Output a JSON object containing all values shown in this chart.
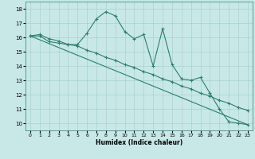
{
  "xlabel": "Humidex (Indice chaleur)",
  "background_color": "#c8e8e8",
  "line_color": "#2d7d6e",
  "grid_color": "#a8d0d0",
  "xlim": [
    -0.5,
    23.5
  ],
  "ylim": [
    9.5,
    18.5
  ],
  "yticks": [
    10,
    11,
    12,
    13,
    14,
    15,
    16,
    17,
    18
  ],
  "xticks": [
    0,
    1,
    2,
    3,
    4,
    5,
    6,
    7,
    8,
    9,
    10,
    11,
    12,
    13,
    14,
    15,
    16,
    17,
    18,
    19,
    20,
    21,
    22,
    23
  ],
  "series1_x": [
    0,
    1,
    2,
    3,
    4,
    5,
    6,
    7,
    8,
    9,
    10,
    11,
    12,
    13,
    14,
    15,
    16,
    17,
    18,
    19,
    20,
    21,
    22,
    23
  ],
  "series1_y": [
    16.1,
    16.2,
    15.9,
    15.75,
    15.5,
    15.5,
    16.3,
    17.3,
    17.8,
    17.5,
    16.4,
    15.9,
    16.2,
    14.0,
    16.6,
    14.1,
    13.1,
    13.0,
    13.2,
    12.1,
    11.0,
    10.1,
    10.0,
    9.9
  ],
  "series2_x": [
    0,
    1,
    2,
    3,
    4,
    5,
    6,
    7,
    8,
    9,
    10,
    11,
    12,
    13,
    14,
    15,
    16,
    17,
    18,
    19,
    20,
    21,
    22,
    23
  ],
  "series2_y": [
    16.1,
    16.1,
    15.7,
    15.6,
    15.5,
    15.4,
    15.1,
    14.9,
    14.6,
    14.4,
    14.1,
    13.9,
    13.6,
    13.4,
    13.1,
    12.9,
    12.6,
    12.4,
    12.1,
    11.9,
    11.6,
    11.4,
    11.1,
    10.9
  ],
  "series3_x": [
    0,
    23
  ],
  "series3_y": [
    16.1,
    9.9
  ]
}
